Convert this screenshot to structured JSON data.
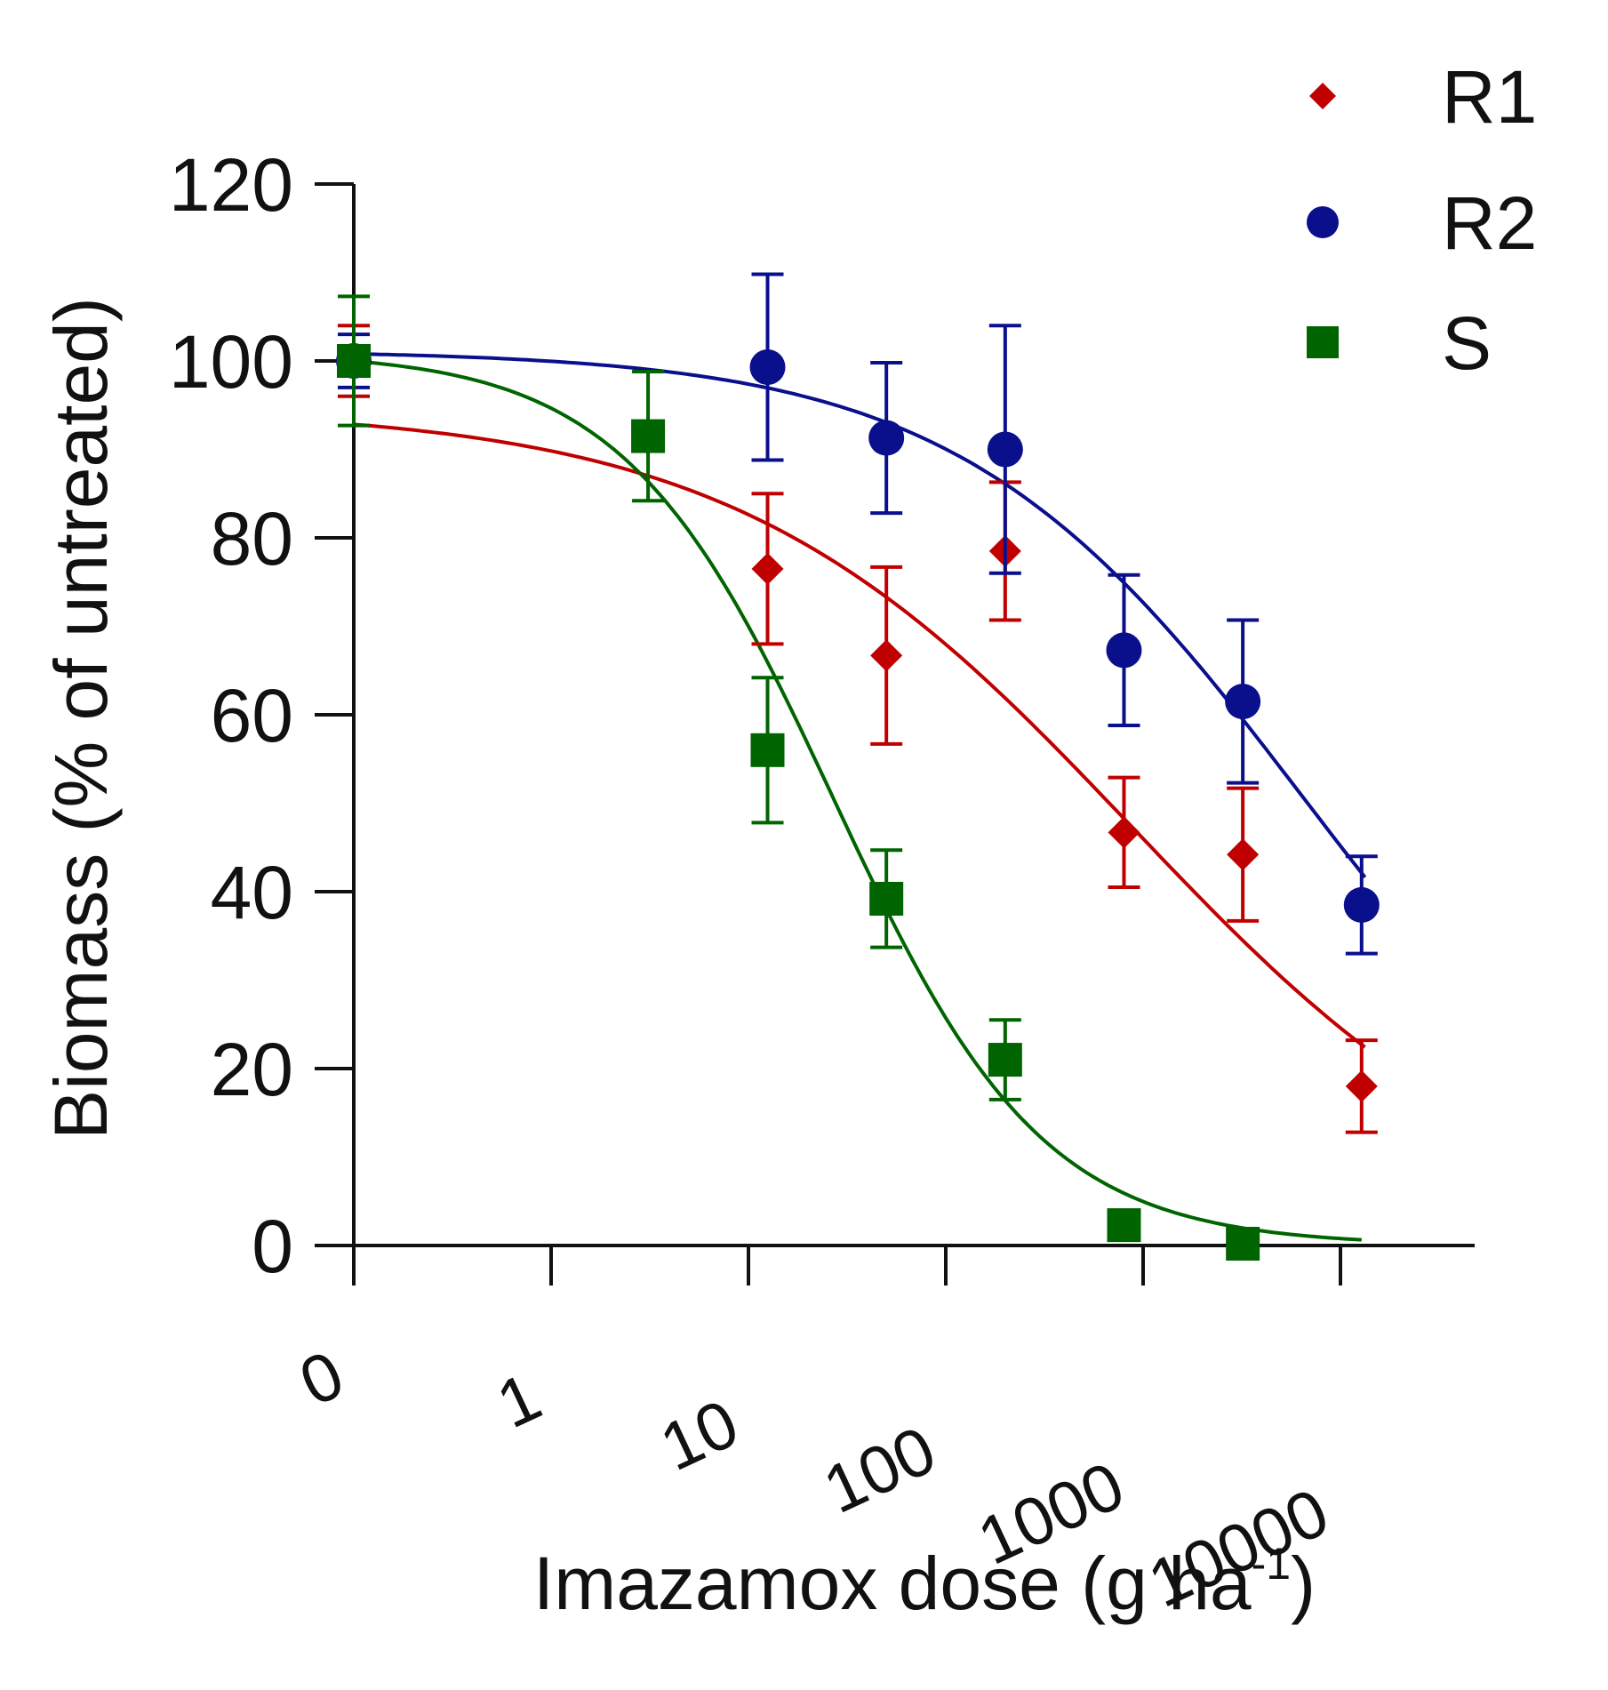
{
  "chart_data": {
    "type": "scatter",
    "title": "",
    "xlabel": "Imazamox dose (g ha",
    "xlabel_superscript": "-1",
    "xlabel_suffix": ")",
    "ylabel": "Biomass (% of untreated)",
    "xscale": "log",
    "ylim": [
      0,
      120
    ],
    "yticks": [
      "0",
      "20",
      "40",
      "60",
      "80",
      "100",
      "120"
    ],
    "xticks": [
      "0",
      "1",
      "10",
      "100",
      "1000",
      "10000"
    ],
    "legend_position": "top-right",
    "grid": false,
    "series": [
      {
        "name": "R1",
        "color": "#c00000",
        "marker": "diamond",
        "x": [
          0,
          12.5,
          50,
          200,
          800,
          3200,
          12800
        ],
        "y": [
          100,
          76.5,
          66.7,
          78.5,
          46.7,
          44.2,
          18.0
        ],
        "error": [
          4,
          8.5,
          10,
          7.8,
          6.2,
          7.5,
          5.2
        ],
        "fit": {
          "top": 94.7,
          "bottom": 0,
          "ed50": 875,
          "slope": 0.43
        }
      },
      {
        "name": "R2",
        "color": "#0a0f8c",
        "marker": "circle",
        "x": [
          0,
          12.5,
          50,
          200,
          800,
          3200,
          12800
        ],
        "y": [
          100,
          99.3,
          91.3,
          90.0,
          67.3,
          61.5,
          38.5
        ],
        "error": [
          3,
          10.5,
          8.5,
          14,
          8.5,
          9.2,
          5.5
        ],
        "fit": {
          "top": 101.2,
          "bottom": 0,
          "ed50": 6500,
          "slope": 0.5
        }
      },
      {
        "name": "S",
        "color": "#006400",
        "marker": "square",
        "x": [
          0,
          3.1,
          12.5,
          50,
          200,
          800,
          3200
        ],
        "y": [
          100,
          91.5,
          56.0,
          39.2,
          21.0,
          2.3,
          0.2
        ],
        "error": [
          7.3,
          7.3,
          8.2,
          5.5,
          4.5,
          0,
          0
        ],
        "fit": {
          "top": 101.0,
          "bottom": 0,
          "ed50": 27,
          "slope": 0.82
        }
      }
    ]
  }
}
